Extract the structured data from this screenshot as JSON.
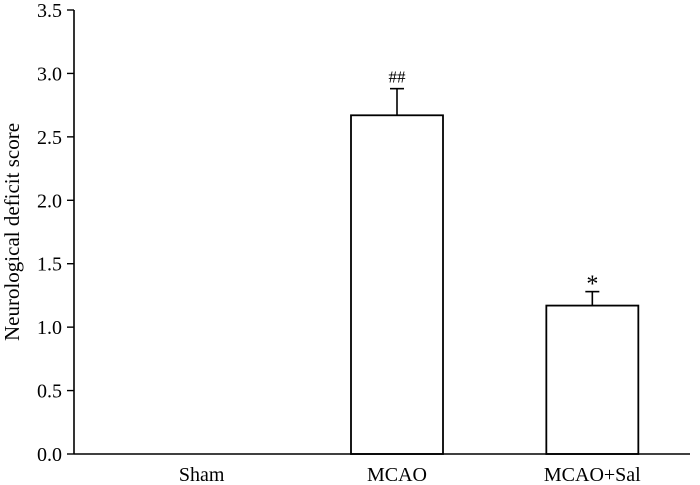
{
  "chart_data": {
    "type": "bar",
    "title": "",
    "xlabel": "",
    "ylabel": "Neurological deficit score",
    "categories": [
      "Sham",
      "MCAO",
      "MCAO+Sal"
    ],
    "values": [
      0,
      2.67,
      1.17
    ],
    "errors": [
      0,
      0.21,
      0.11
    ],
    "annotations": [
      "",
      "##",
      "*"
    ],
    "ylim": [
      0,
      3.5
    ],
    "yticks": [
      0.0,
      0.5,
      1.0,
      1.5,
      2.0,
      2.5,
      3.0,
      3.5
    ],
    "ytick_labels": [
      "0.0",
      "0.5",
      "1.0",
      "1.5",
      "2.0",
      "2.5",
      "3.0",
      "3.5"
    ],
    "grid": false,
    "legend": "none",
    "colors": {
      "bar_fill": "#ffffff",
      "bar_edge": "#000000",
      "axis": "#000000"
    }
  }
}
